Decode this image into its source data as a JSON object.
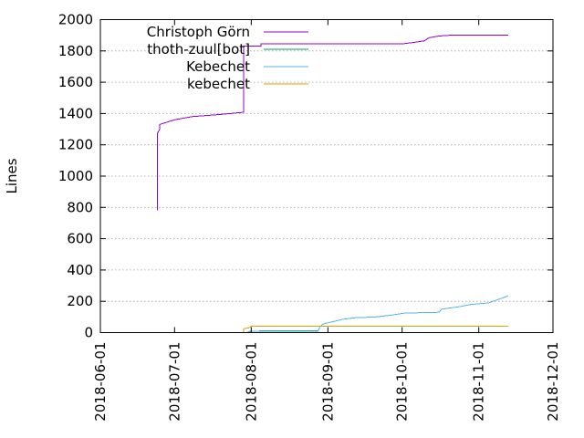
{
  "chart_data": {
    "type": "line",
    "title": "",
    "xlabel": "",
    "ylabel": "Lines",
    "x_type": "date",
    "xlim": [
      "2018-06-01",
      "2018-12-01"
    ],
    "ylim": [
      0,
      2000
    ],
    "xticks": [
      "2018-06-01",
      "2018-07-01",
      "2018-08-01",
      "2018-09-01",
      "2018-10-01",
      "2018-11-01",
      "2018-12-01"
    ],
    "yticks": [
      0,
      200,
      400,
      600,
      800,
      1000,
      1200,
      1400,
      1600,
      1800,
      2000
    ],
    "grid": true,
    "legend_position": "top-left",
    "series": [
      {
        "name": "Christoph Görn",
        "color": "#9400d3",
        "points": [
          [
            "2018-06-24",
            780
          ],
          [
            "2018-06-24",
            1270
          ],
          [
            "2018-06-25",
            1300
          ],
          [
            "2018-06-25",
            1330
          ],
          [
            "2018-07-01",
            1360
          ],
          [
            "2018-07-08",
            1380
          ],
          [
            "2018-07-20",
            1395
          ],
          [
            "2018-07-29",
            1408
          ],
          [
            "2018-07-29",
            1830
          ],
          [
            "2018-08-05",
            1830
          ],
          [
            "2018-08-05",
            1845
          ],
          [
            "2018-10-01",
            1845
          ],
          [
            "2018-10-06",
            1855
          ],
          [
            "2018-10-10",
            1865
          ],
          [
            "2018-10-12",
            1885
          ],
          [
            "2018-10-16",
            1895
          ],
          [
            "2018-10-20",
            1900
          ],
          [
            "2018-11-13",
            1900
          ]
        ]
      },
      {
        "name": "thoth-zuul[bot]",
        "color": "#009e73",
        "points": [
          [
            "2018-07-30",
            0
          ],
          [
            "2018-07-31",
            5
          ],
          [
            "2018-08-01",
            10
          ],
          [
            "2018-08-28",
            12
          ],
          [
            "2018-08-29",
            40
          ]
        ]
      },
      {
        "name": "Kebechet",
        "color": "#56b4e9",
        "points": [
          [
            "2018-07-30",
            0
          ],
          [
            "2018-08-01",
            8
          ],
          [
            "2018-08-28",
            10
          ],
          [
            "2018-08-29",
            40
          ],
          [
            "2018-08-30",
            55
          ],
          [
            "2018-09-03",
            70
          ],
          [
            "2018-09-07",
            85
          ],
          [
            "2018-09-12",
            95
          ],
          [
            "2018-09-20",
            100
          ],
          [
            "2018-09-26",
            110
          ],
          [
            "2018-10-02",
            125
          ],
          [
            "2018-10-16",
            130
          ],
          [
            "2018-10-17",
            150
          ],
          [
            "2018-10-24",
            165
          ],
          [
            "2018-10-29",
            180
          ],
          [
            "2018-11-05",
            190
          ],
          [
            "2018-11-13",
            235
          ]
        ]
      },
      {
        "name": "kebechet",
        "color": "#e69f00",
        "points": [
          [
            "2018-07-29",
            0
          ],
          [
            "2018-07-29",
            25
          ],
          [
            "2018-07-31",
            30
          ],
          [
            "2018-08-01",
            40
          ],
          [
            "2018-11-13",
            40
          ]
        ]
      }
    ]
  }
}
